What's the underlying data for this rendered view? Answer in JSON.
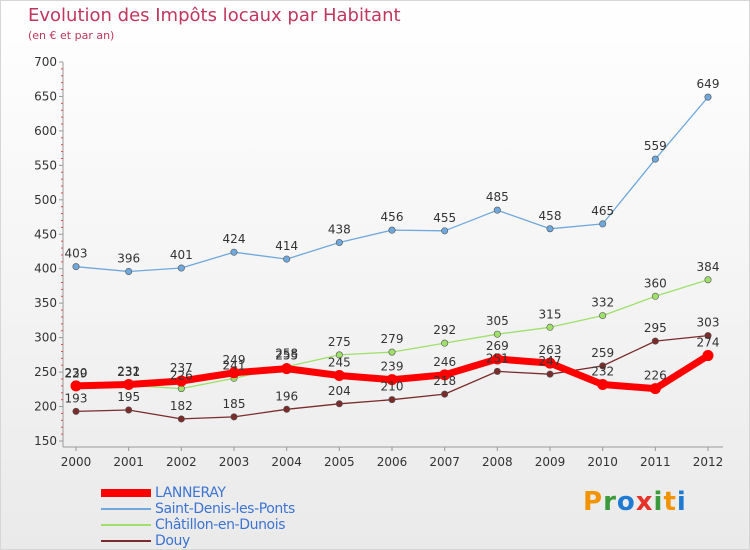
{
  "title": "Evolution des Impôts locaux par Habitant",
  "subtitle": "(en € et par an)",
  "logo": {
    "text": "Proxiti",
    "letters": [
      "P",
      "r",
      "o",
      "x",
      "i",
      "t",
      "i"
    ],
    "colors": [
      "#f29400",
      "#3b9b3b",
      "#1f7ad3",
      "#e5332a",
      "#3b9b3b",
      "#f29400",
      "#1f7ad3"
    ]
  },
  "chart_data": {
    "type": "line",
    "x": [
      "2000",
      "2001",
      "2002",
      "2003",
      "2004",
      "2005",
      "2006",
      "2007",
      "2008",
      "2009",
      "2010",
      "2011",
      "2012"
    ],
    "ylim": [
      150,
      700
    ],
    "yticks": [
      150,
      200,
      250,
      300,
      350,
      400,
      450,
      500,
      550,
      600,
      650,
      700
    ],
    "grid": false,
    "legend_position": "bottom-left",
    "series": [
      {
        "name": "LANNERAY",
        "color": "#ff0000",
        "values": [
          230,
          232,
          237,
          249,
          255,
          245,
          239,
          246,
          269,
          263,
          232,
          226,
          274
        ]
      },
      {
        "name": "Saint-Denis-les-Ponts",
        "color": "#6fa8dc",
        "values": [
          403,
          396,
          401,
          424,
          414,
          438,
          456,
          455,
          485,
          458,
          465,
          559,
          649
        ]
      },
      {
        "name": "Châtillon-en-Dunois",
        "color": "#9ee06a",
        "values": [
          229,
          231,
          226,
          241,
          258,
          275,
          279,
          292,
          305,
          315,
          332,
          360,
          384
        ]
      },
      {
        "name": "Douy",
        "color": "#7a2b2b",
        "values": [
          193,
          195,
          182,
          185,
          196,
          204,
          210,
          218,
          251,
          247,
          259,
          295,
          303
        ]
      }
    ]
  }
}
